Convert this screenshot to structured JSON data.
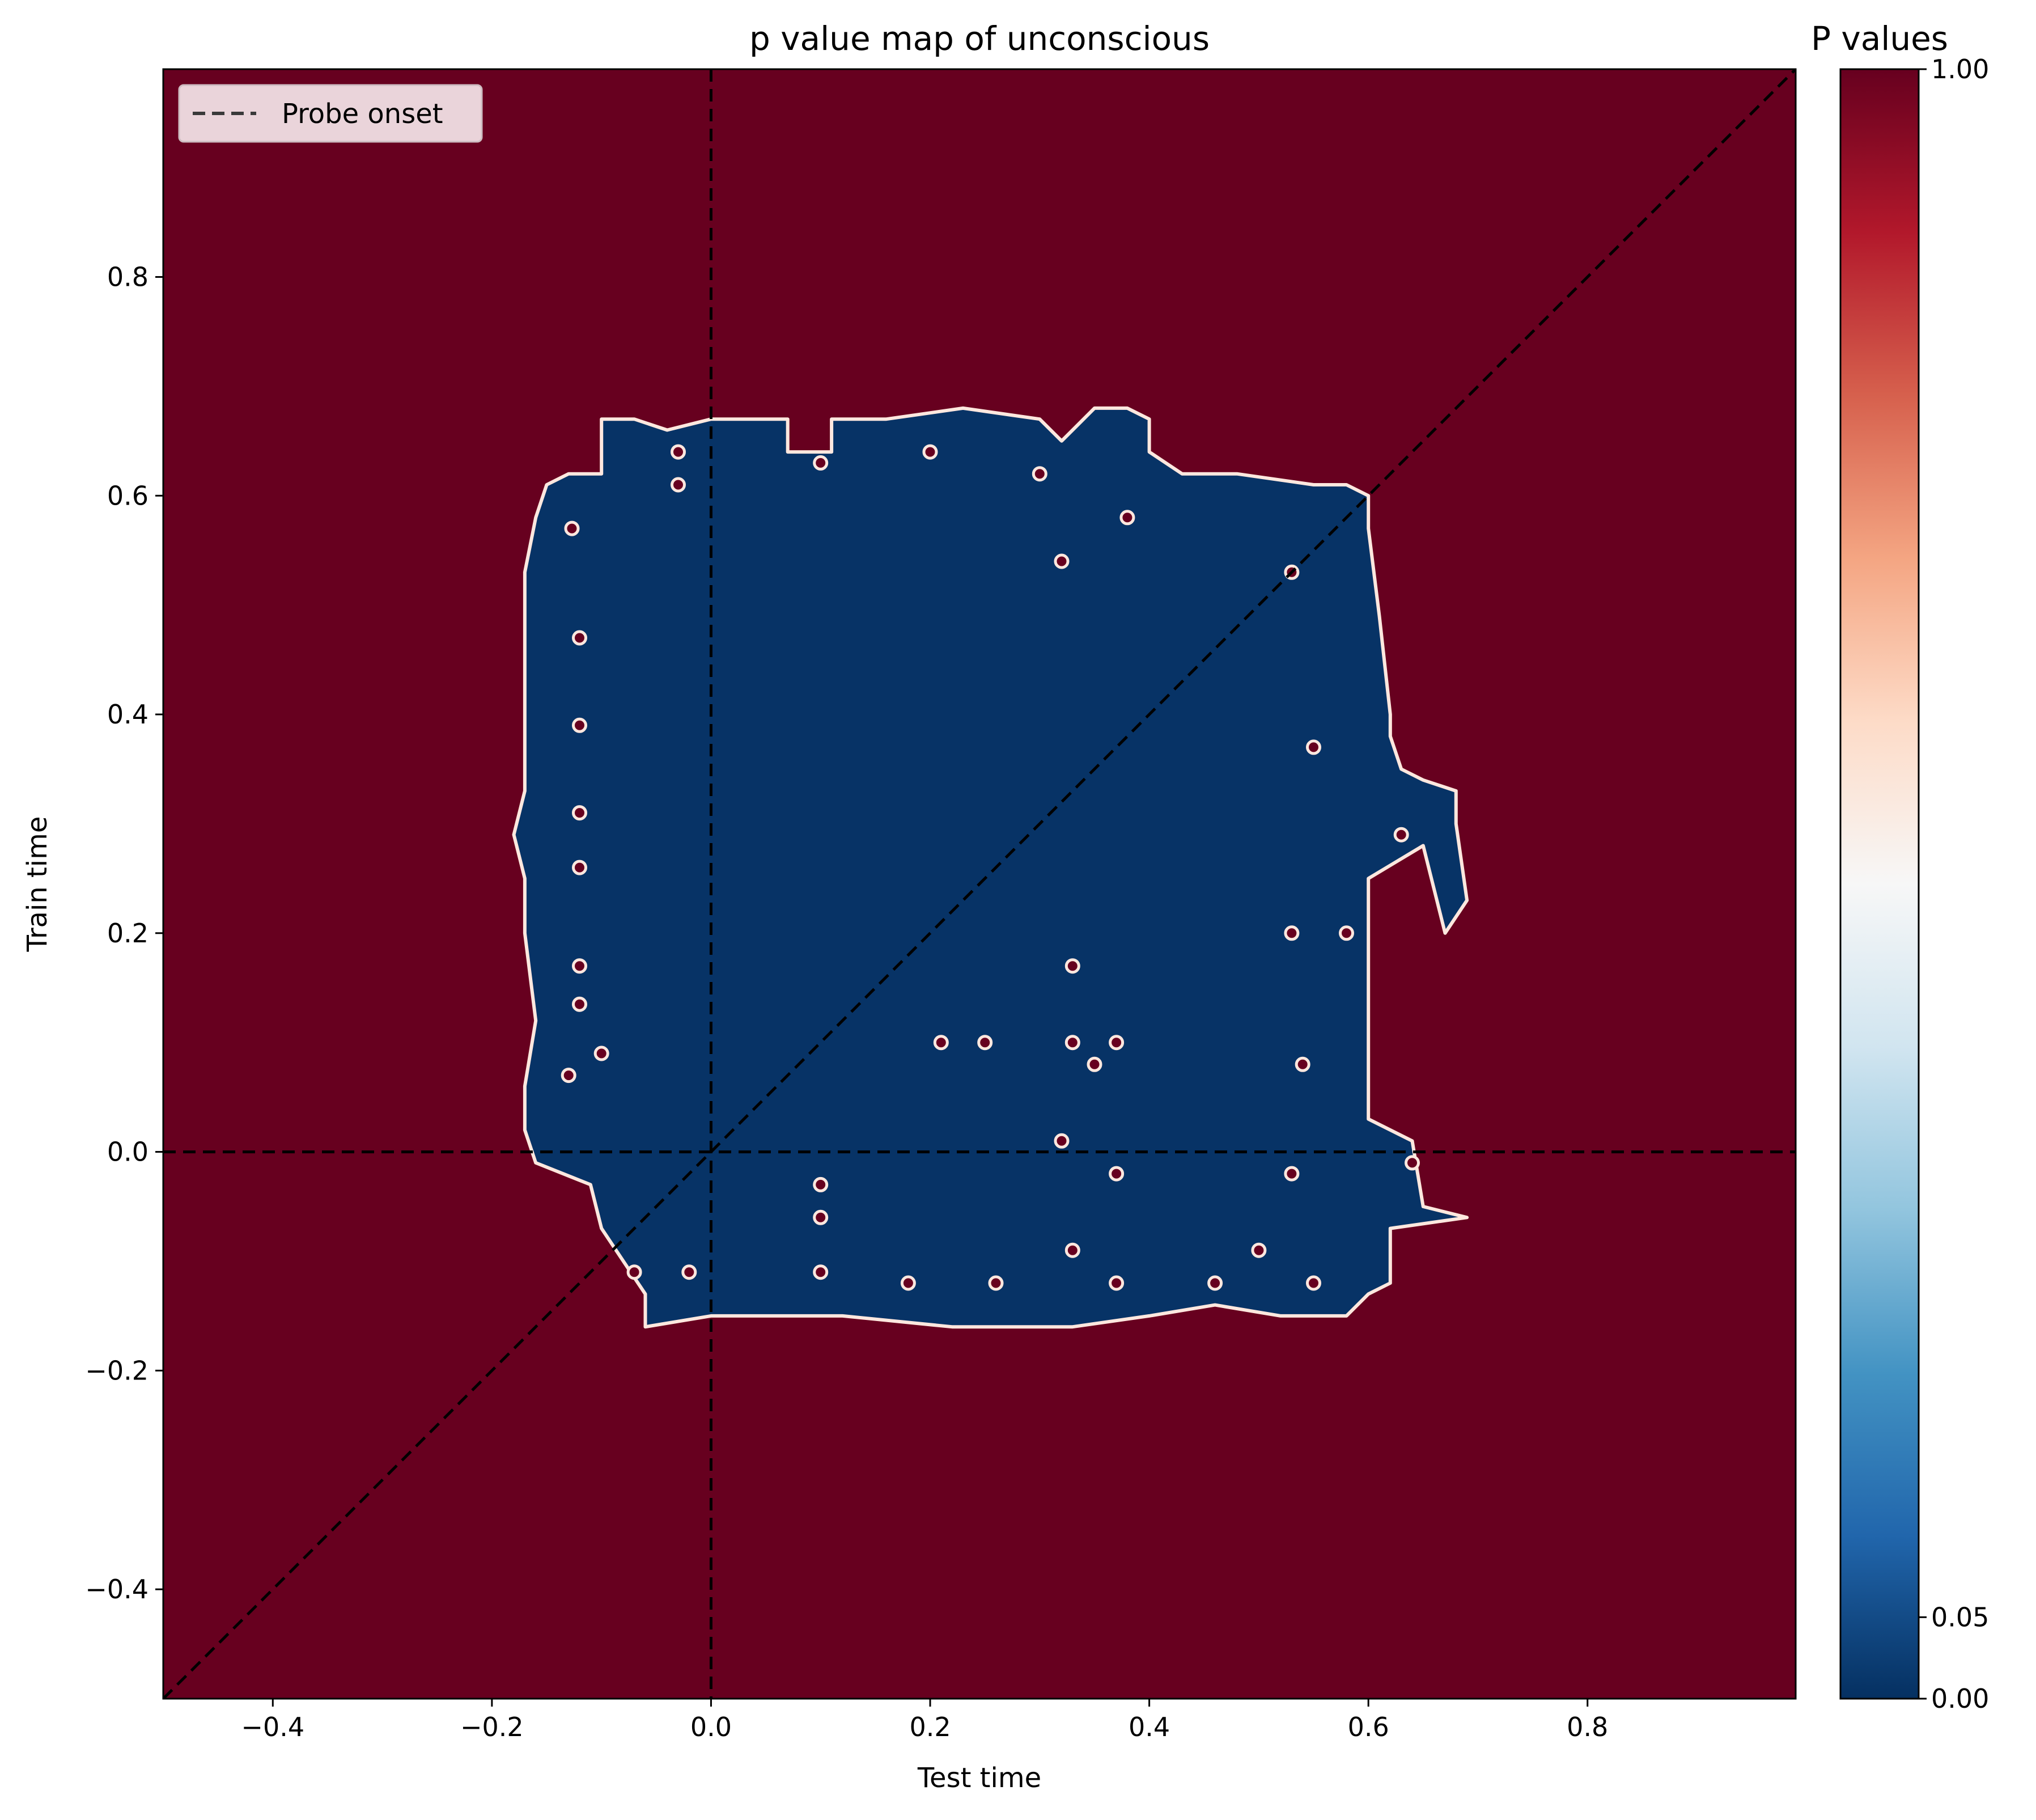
{
  "chart_data": {
    "type": "heatmap",
    "title": "p value map of unconscious",
    "xlabel": "Test time",
    "ylabel": "Train time",
    "xlim": [
      -0.5,
      0.99
    ],
    "ylim": [
      -0.5,
      0.99
    ],
    "xticks": [
      -0.4,
      -0.2,
      0.0,
      0.2,
      0.4,
      0.6,
      0.8
    ],
    "xtick_labels": [
      "−0.4",
      "−0.2",
      "0.0",
      "0.2",
      "0.4",
      "0.6",
      "0.8"
    ],
    "yticks": [
      -0.4,
      -0.2,
      0.0,
      0.2,
      0.4,
      0.6,
      0.8
    ],
    "ytick_labels": [
      "−0.4",
      "−0.2",
      "0.0",
      "0.2",
      "0.4",
      "0.6",
      "0.8"
    ],
    "background_p_value": 1.0,
    "significant_p_value": 0.0,
    "significant_region": [
      [
        -0.13,
        0.62
      ],
      [
        -0.1,
        0.62
      ],
      [
        -0.1,
        0.67
      ],
      [
        -0.07,
        0.67
      ],
      [
        -0.04,
        0.66
      ],
      [
        0.0,
        0.67
      ],
      [
        0.02,
        0.67
      ],
      [
        0.07,
        0.67
      ],
      [
        0.07,
        0.64
      ],
      [
        0.11,
        0.64
      ],
      [
        0.11,
        0.67
      ],
      [
        0.16,
        0.67
      ],
      [
        0.23,
        0.68
      ],
      [
        0.3,
        0.67
      ],
      [
        0.32,
        0.65
      ],
      [
        0.35,
        0.68
      ],
      [
        0.38,
        0.68
      ],
      [
        0.4,
        0.67
      ],
      [
        0.4,
        0.64
      ],
      [
        0.43,
        0.62
      ],
      [
        0.48,
        0.62
      ],
      [
        0.55,
        0.61
      ],
      [
        0.58,
        0.61
      ],
      [
        0.6,
        0.6
      ],
      [
        0.6,
        0.58
      ],
      [
        0.6,
        0.57
      ],
      [
        0.61,
        0.49
      ],
      [
        0.62,
        0.4
      ],
      [
        0.62,
        0.38
      ],
      [
        0.63,
        0.35
      ],
      [
        0.65,
        0.34
      ],
      [
        0.68,
        0.33
      ],
      [
        0.68,
        0.3
      ],
      [
        0.69,
        0.23
      ],
      [
        0.67,
        0.2
      ],
      [
        0.65,
        0.28
      ],
      [
        0.6,
        0.25
      ],
      [
        0.6,
        0.12
      ],
      [
        0.6,
        0.03
      ],
      [
        0.64,
        0.01
      ],
      [
        0.65,
        -0.05
      ],
      [
        0.69,
        -0.06
      ],
      [
        0.62,
        -0.07
      ],
      [
        0.62,
        -0.12
      ],
      [
        0.6,
        -0.13
      ],
      [
        0.58,
        -0.15
      ],
      [
        0.52,
        -0.15
      ],
      [
        0.46,
        -0.14
      ],
      [
        0.4,
        -0.15
      ],
      [
        0.33,
        -0.16
      ],
      [
        0.22,
        -0.16
      ],
      [
        0.12,
        -0.15
      ],
      [
        0.06,
        -0.15
      ],
      [
        0.0,
        -0.15
      ],
      [
        -0.06,
        -0.16
      ],
      [
        -0.06,
        -0.13
      ],
      [
        -0.08,
        -0.1
      ],
      [
        -0.1,
        -0.07
      ],
      [
        -0.11,
        -0.03
      ],
      [
        -0.16,
        -0.01
      ],
      [
        -0.17,
        0.02
      ],
      [
        -0.17,
        0.06
      ],
      [
        -0.16,
        0.12
      ],
      [
        -0.17,
        0.2
      ],
      [
        -0.17,
        0.25
      ],
      [
        -0.18,
        0.29
      ],
      [
        -0.17,
        0.33
      ],
      [
        -0.17,
        0.37
      ],
      [
        -0.17,
        0.43
      ],
      [
        -0.17,
        0.47
      ],
      [
        -0.17,
        0.53
      ],
      [
        -0.16,
        0.58
      ],
      [
        -0.15,
        0.61
      ]
    ],
    "nonsignificant_holes": [
      {
        "x": -0.127,
        "y": 0.57
      },
      {
        "x": -0.12,
        "y": 0.47
      },
      {
        "x": -0.12,
        "y": 0.39
      },
      {
        "x": -0.12,
        "y": 0.31
      },
      {
        "x": -0.12,
        "y": 0.26
      },
      {
        "x": -0.12,
        "y": 0.17
      },
      {
        "x": -0.12,
        "y": 0.135
      },
      {
        "x": -0.1,
        "y": 0.09
      },
      {
        "x": -0.13,
        "y": 0.07
      },
      {
        "x": -0.03,
        "y": 0.64
      },
      {
        "x": -0.03,
        "y": 0.61
      },
      {
        "x": 0.1,
        "y": 0.63
      },
      {
        "x": 0.2,
        "y": 0.64
      },
      {
        "x": 0.3,
        "y": 0.62
      },
      {
        "x": 0.32,
        "y": 0.54
      },
      {
        "x": 0.38,
        "y": 0.58
      },
      {
        "x": 0.53,
        "y": 0.53
      },
      {
        "x": 0.33,
        "y": 0.17
      },
      {
        "x": 0.55,
        "y": 0.37
      },
      {
        "x": 0.53,
        "y": 0.2
      },
      {
        "x": 0.58,
        "y": 0.2
      },
      {
        "x": 0.21,
        "y": 0.1
      },
      {
        "x": 0.25,
        "y": 0.1
      },
      {
        "x": 0.33,
        "y": 0.1
      },
      {
        "x": 0.37,
        "y": 0.1
      },
      {
        "x": 0.35,
        "y": 0.08
      },
      {
        "x": 0.54,
        "y": 0.08
      },
      {
        "x": 0.32,
        "y": 0.01
      },
      {
        "x": 0.37,
        "y": -0.02
      },
      {
        "x": 0.53,
        "y": -0.02
      },
      {
        "x": 0.1,
        "y": -0.03
      },
      {
        "x": 0.1,
        "y": -0.06
      },
      {
        "x": 0.33,
        "y": -0.09
      },
      {
        "x": 0.63,
        "y": 0.29
      },
      {
        "x": 0.64,
        "y": -0.01
      },
      {
        "x": -0.02,
        "y": -0.11
      },
      {
        "x": -0.07,
        "y": -0.11
      },
      {
        "x": 0.1,
        "y": -0.11
      },
      {
        "x": 0.18,
        "y": -0.12
      },
      {
        "x": 0.26,
        "y": -0.12
      },
      {
        "x": 0.37,
        "y": -0.12
      },
      {
        "x": 0.46,
        "y": -0.12
      },
      {
        "x": 0.55,
        "y": -0.12
      },
      {
        "x": 0.5,
        "y": -0.09
      }
    ],
    "reference_lines": {
      "vertical_x": 0.0,
      "horizontal_y": 0.0,
      "diagonal": "y = x"
    },
    "legend": {
      "placement": "upper-left",
      "entries": [
        "Probe onset"
      ]
    },
    "colorbar": {
      "label": "P values",
      "ticks": [
        0.0,
        0.05,
        1.0
      ],
      "tick_labels": [
        "0.00",
        "0.05",
        "1.00"
      ],
      "colormap": "RdBu_r"
    },
    "colors": {
      "high_p": "#67001f",
      "low_p": "#073366",
      "contour": "#ffe8df",
      "reference_line": "#000000"
    }
  }
}
